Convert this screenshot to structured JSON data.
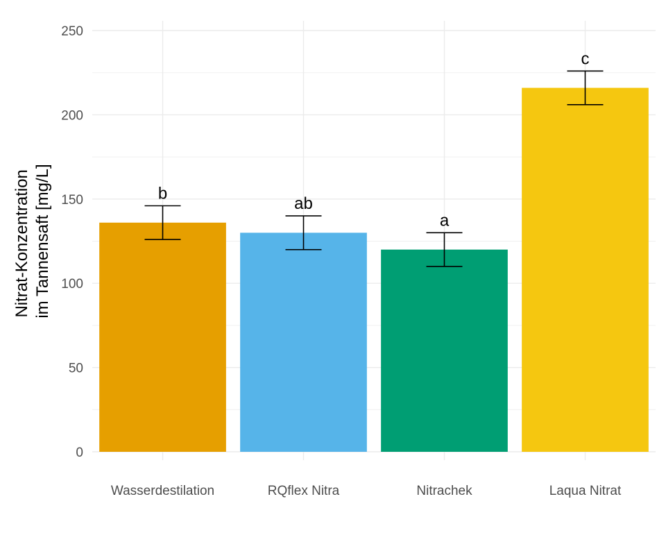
{
  "chart_data": {
    "type": "bar",
    "categories": [
      "Wasserdestilation",
      "RQflex Nitra",
      "Nitrachek",
      "Laqua Nitrat"
    ],
    "values": [
      136,
      130,
      120,
      216
    ],
    "error_low": [
      126,
      120,
      110,
      206
    ],
    "error_high": [
      146,
      140,
      130,
      226
    ],
    "significance_labels": [
      "b",
      "ab",
      "a",
      "c"
    ],
    "colors": [
      "#E69F00",
      "#56B4E9",
      "#009E73",
      "#F5C710"
    ],
    "ylabel_lines": [
      "Nitrat-Konzentration",
      "im Tannensaft [mg/L]"
    ],
    "ylim": [
      0,
      250
    ],
    "yticks": [
      "0",
      "50",
      "100",
      "150",
      "200",
      "250"
    ],
    "grid": true
  }
}
